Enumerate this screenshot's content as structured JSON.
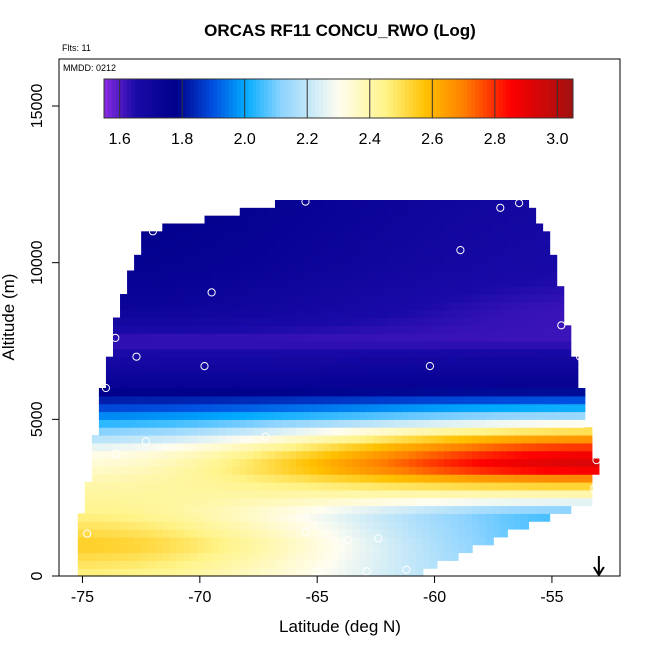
{
  "chart_data": {
    "type": "heatmap",
    "title": "ORCAS RF11 CONCU_RWO (Log)",
    "annotations": {
      "flights": "Flts: 11",
      "date": "MMDD: 0212"
    },
    "xlabel": "Latitude (deg N)",
    "ylabel": "Altitude (m)",
    "xlim": [
      -76,
      -52.1
    ],
    "ylim": [
      0,
      16500
    ],
    "x_ticks": [
      -75,
      -70,
      -65,
      -60,
      -55
    ],
    "x_tick_labels": [
      "-75",
      "-70",
      "-65",
      "-60",
      "-55"
    ],
    "y_ticks": [
      0,
      5000,
      10000,
      15000
    ],
    "y_tick_labels": [
      "0",
      "5000",
      "10000",
      "15000"
    ],
    "colorbar": {
      "range": [
        1.55,
        3.05
      ],
      "ticks": [
        1.6,
        1.8,
        2.0,
        2.2,
        2.4,
        2.6,
        2.8,
        3.0
      ],
      "tick_labels": [
        "1.6",
        "1.8",
        "2.0",
        "2.2",
        "2.4",
        "2.6",
        "2.8",
        "3.0"
      ],
      "dividers": [
        1.6,
        1.8,
        2.0,
        2.2,
        2.4,
        2.6,
        2.8,
        3.0
      ],
      "color_stops": [
        {
          "v": 1.55,
          "c": "#8a2be2"
        },
        {
          "v": 1.65,
          "c": "#1a0aa8"
        },
        {
          "v": 1.78,
          "c": "#00008b"
        },
        {
          "v": 1.9,
          "c": "#0050e0"
        },
        {
          "v": 2.0,
          "c": "#00aaff"
        },
        {
          "v": 2.12,
          "c": "#8fd4ff"
        },
        {
          "v": 2.3,
          "c": "#fffdf0"
        },
        {
          "v": 2.45,
          "c": "#fff48a"
        },
        {
          "v": 2.58,
          "c": "#ffc000"
        },
        {
          "v": 2.7,
          "c": "#ff8000"
        },
        {
          "v": 2.85,
          "c": "#ff0000"
        },
        {
          "v": 3.05,
          "c": "#a01010"
        }
      ]
    },
    "field_profile": [
      {
        "alt": 0,
        "south": 2.45,
        "north": 2.1
      },
      {
        "alt": 1000,
        "south": 2.55,
        "north": 2.05
      },
      {
        "alt": 2000,
        "south": 2.45,
        "north": 2.05
      },
      {
        "alt": 3000,
        "south": 2.4,
        "north": 2.6
      },
      {
        "alt": 3500,
        "south": 2.35,
        "north": 2.95
      },
      {
        "alt": 4000,
        "south": 2.3,
        "north": 2.85
      },
      {
        "alt": 4500,
        "south": 2.15,
        "north": 2.6
      },
      {
        "alt": 5000,
        "south": 2.0,
        "north": 2.2
      },
      {
        "alt": 5500,
        "south": 1.85,
        "north": 1.95
      },
      {
        "alt": 6000,
        "south": 1.75,
        "north": 1.75
      },
      {
        "alt": 6800,
        "south": 1.68,
        "north": 1.7
      },
      {
        "alt": 7500,
        "south": 1.62,
        "north": 1.62
      },
      {
        "alt": 8500,
        "south": 1.72,
        "north": 1.62
      },
      {
        "alt": 10000,
        "south": 1.76,
        "north": 1.66
      },
      {
        "alt": 12000,
        "south": 1.78,
        "north": 1.68
      }
    ],
    "domain_outline": [
      [
        -75.3,
        0
      ],
      [
        -75.1,
        1800
      ],
      [
        -74.6,
        3500
      ],
      [
        -74.3,
        5500
      ],
      [
        -74.0,
        6500
      ],
      [
        -73.5,
        8500
      ],
      [
        -72.3,
        11000
      ],
      [
        -66.0,
        12000
      ],
      [
        -56.0,
        12000
      ],
      [
        -55.0,
        10500
      ],
      [
        -54.2,
        7500
      ],
      [
        -53.5,
        5000
      ],
      [
        -53.1,
        3500
      ],
      [
        -53.3,
        2400
      ],
      [
        -55.5,
        1800
      ],
      [
        -58.0,
        1000
      ],
      [
        -61.0,
        0
      ]
    ],
    "sample_points": [
      {
        "lat": -72.0,
        "alt": 11000
      },
      {
        "lat": -65.5,
        "alt": 11950
      },
      {
        "lat": -57.2,
        "alt": 11750
      },
      {
        "lat": -56.4,
        "alt": 11900
      },
      {
        "lat": -58.9,
        "alt": 10400
      },
      {
        "lat": -69.5,
        "alt": 9050
      },
      {
        "lat": -54.6,
        "alt": 8000
      },
      {
        "lat": -73.6,
        "alt": 7600
      },
      {
        "lat": -72.7,
        "alt": 7000
      },
      {
        "lat": -69.8,
        "alt": 6700
      },
      {
        "lat": -60.2,
        "alt": 6700
      },
      {
        "lat": -53.8,
        "alt": 7000
      },
      {
        "lat": -74.0,
        "alt": 6000
      },
      {
        "lat": -72.3,
        "alt": 4300
      },
      {
        "lat": -67.2,
        "alt": 4450
      },
      {
        "lat": -73.6,
        "alt": 3900
      },
      {
        "lat": -53.1,
        "alt": 3700
      },
      {
        "lat": -53.2,
        "alt": 2800
      },
      {
        "lat": -74.8,
        "alt": 1350
      },
      {
        "lat": -65.5,
        "alt": 1400
      },
      {
        "lat": -63.7,
        "alt": 1150
      },
      {
        "lat": -62.4,
        "alt": 1200
      },
      {
        "lat": -65.0,
        "alt": 150
      },
      {
        "lat": -62.9,
        "alt": 150
      },
      {
        "lat": -61.2,
        "alt": 200
      }
    ],
    "marker": {
      "type": "arrow-down",
      "lat": -53.0
    }
  }
}
